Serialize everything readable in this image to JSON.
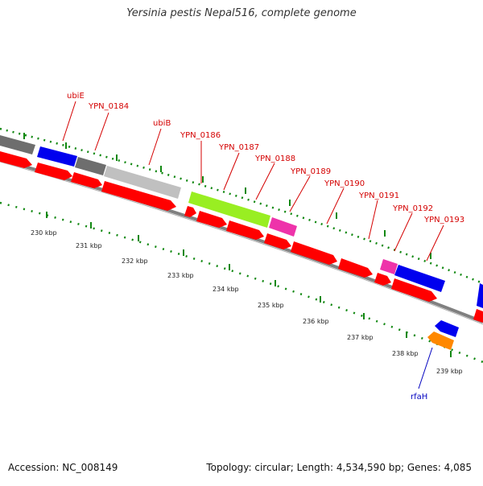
{
  "header": {
    "title": "Yersinia pestis Nepal516, complete genome"
  },
  "footer": {
    "accession": "Accession: NC_008149",
    "summary": "Topology: circular; Length: 4,534,590 bp; Genes: 4,085"
  },
  "gene_labels_top": [
    "ubiE",
    "YPN_0184",
    "ubiB",
    "YPN_0186",
    "YPN_0187",
    "YPN_0188",
    "YPN_0189",
    "YPN_0190",
    "YPN_0191",
    "YPN_0192",
    "YPN_0193"
  ],
  "gene_labels_bottom": [
    "rfaH"
  ],
  "scale_ticks": [
    "230 kbp",
    "231 kbp",
    "232 kbp",
    "233 kbp",
    "234 kbp",
    "235 kbp",
    "236 kbp",
    "237 kbp",
    "238 kbp",
    "239 kbp"
  ],
  "colors": {
    "label_red": "#d40000",
    "label_blue": "#0000c0",
    "gene_red": "#ff0000",
    "gene_blue": "#0000ee",
    "gene_gray_dark": "#6e6e6e",
    "gene_gray_light": "#c0c0c0",
    "gene_green": "#99ee22",
    "gene_pink": "#ee33aa",
    "gene_orange": "#ff8800",
    "tick_green": "#118811",
    "backbone": "#808080"
  }
}
